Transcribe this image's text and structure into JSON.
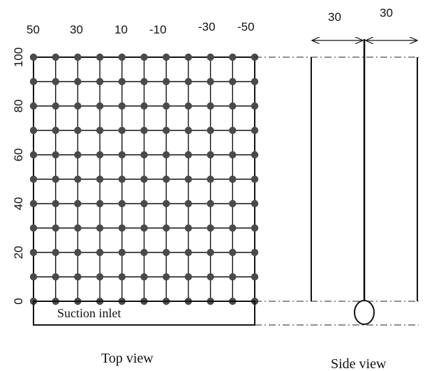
{
  "top_view": {
    "caption": "Top view",
    "x_labels": [
      "50",
      "30",
      "10",
      "-10",
      "-30",
      "-50"
    ],
    "y_labels": [
      "100",
      "80",
      "60",
      "40",
      "20",
      "0"
    ],
    "inlet_label": "Suction inlet"
  },
  "side_view": {
    "caption": "Side view",
    "dims": [
      "30",
      "30"
    ]
  },
  "colors": {
    "line": "#111111",
    "dot": "#4a4a4a",
    "dash": "#222222"
  }
}
